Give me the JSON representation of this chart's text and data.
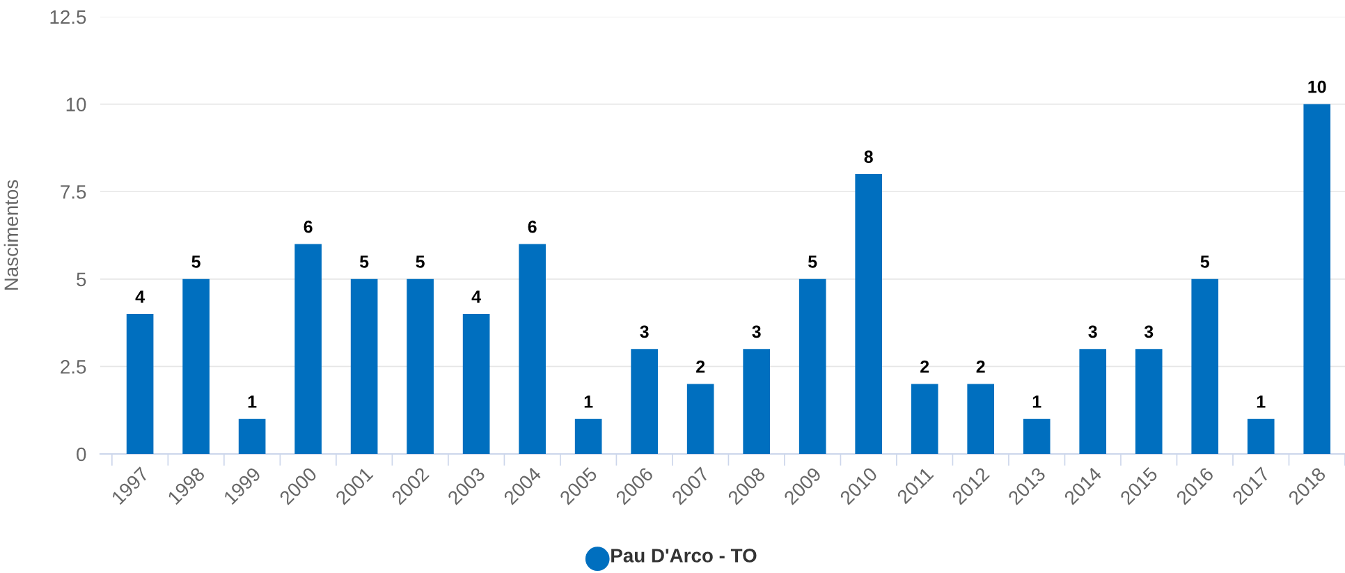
{
  "chart_data": {
    "type": "bar",
    "ylabel": "Nascimentos",
    "categories": [
      "1997",
      "1998",
      "1999",
      "2000",
      "2001",
      "2002",
      "2003",
      "2004",
      "2005",
      "2006",
      "2007",
      "2008",
      "2009",
      "2010",
      "2011",
      "2012",
      "2013",
      "2014",
      "2015",
      "2016",
      "2017",
      "2018"
    ],
    "series": [
      {
        "name": "Pau D'Arco - TO",
        "color": "#006fbf",
        "values": [
          4,
          5,
          1,
          6,
          5,
          5,
          4,
          6,
          1,
          3,
          2,
          3,
          5,
          8,
          2,
          2,
          1,
          3,
          3,
          5,
          1,
          10
        ]
      }
    ],
    "ylim": [
      0,
      12.5
    ],
    "yticks": [
      0,
      2.5,
      5,
      7.5,
      10,
      12.5
    ],
    "grid": "y",
    "legend": "bottom",
    "data_labels": true
  }
}
